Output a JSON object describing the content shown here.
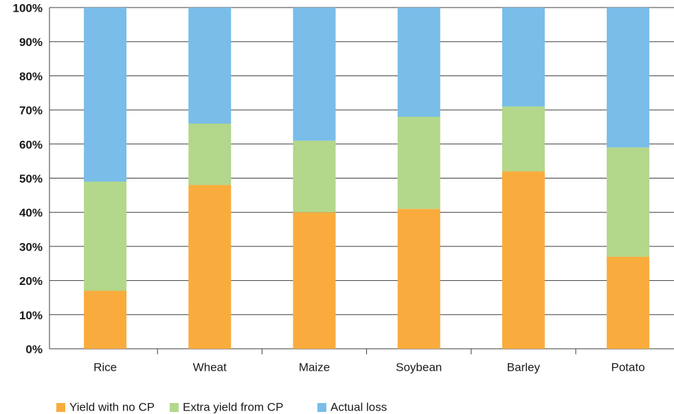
{
  "chart_data": {
    "type": "stacked_bar",
    "categories": [
      "Rice",
      "Wheat",
      "Maize",
      "Soybean",
      "Barley",
      "Potato"
    ],
    "series": [
      {
        "name": "Yield with no CP",
        "color": "#f9ac3d",
        "values": [
          17,
          48,
          40,
          41,
          52,
          27
        ]
      },
      {
        "name": "Extra yield from CP",
        "color": "#b3d78b",
        "values": [
          32,
          18,
          21,
          27,
          19,
          32
        ]
      },
      {
        "name": "Actual loss",
        "color": "#79bde8",
        "values": [
          51,
          34,
          39,
          32,
          29,
          41
        ]
      }
    ],
    "ylim": [
      0,
      100
    ],
    "yticks": [
      {
        "value": 0,
        "label": "0%"
      },
      {
        "value": 10,
        "label": "10%"
      },
      {
        "value": 20,
        "label": "20%"
      },
      {
        "value": 30,
        "label": "30%"
      },
      {
        "value": 40,
        "label": "40%"
      },
      {
        "value": 50,
        "label": "50%"
      },
      {
        "value": 60,
        "label": "60%"
      },
      {
        "value": 70,
        "label": "70%"
      },
      {
        "value": 80,
        "label": "80%"
      },
      {
        "value": 90,
        "label": "90%"
      },
      {
        "value": 100,
        "label": "100%"
      }
    ],
    "grid": true
  }
}
